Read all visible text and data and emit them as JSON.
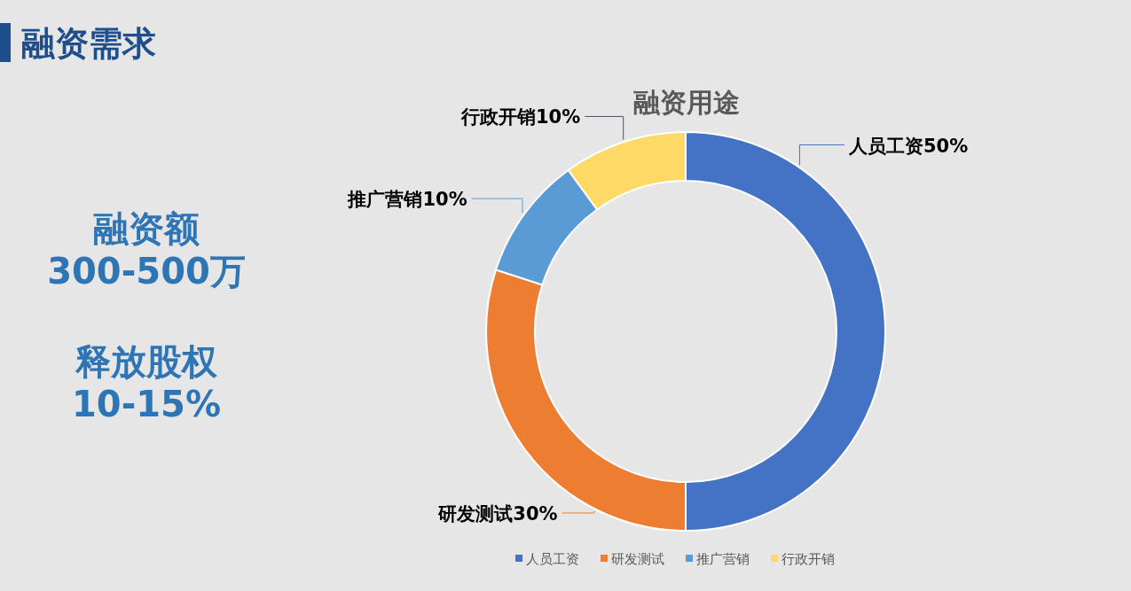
{
  "chart_data": {
    "type": "donut",
    "title": "融资用途",
    "categories": [
      "人员工资",
      "研发测试",
      "推广营销",
      "行政开销"
    ],
    "values": [
      50,
      30,
      10,
      10
    ],
    "colors": [
      "#4472c4",
      "#ed7d31",
      "#5b9bd5",
      "#ffd966"
    ],
    "value_labels": [
      "人员工资50%",
      "研发测试30%",
      "推广营销10%",
      "行政开销10%"
    ],
    "legend": "bottom",
    "annotations": [
      "融资需求",
      "融资额\n300-500万",
      "释放股权\n10-15%"
    ]
  }
}
